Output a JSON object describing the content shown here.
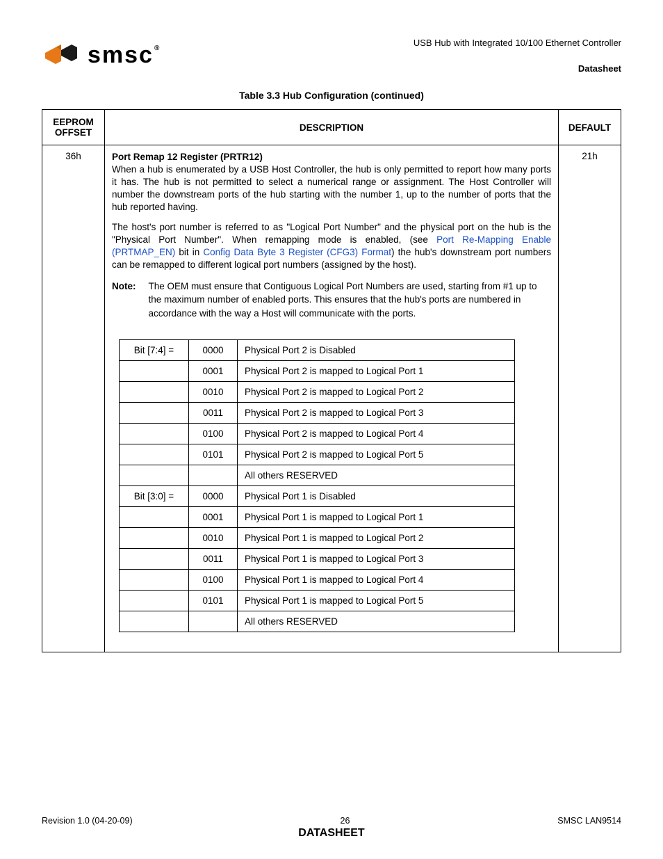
{
  "header": {
    "product_line": "USB Hub with Integrated 10/100 Ethernet Controller",
    "doc_type": "Datasheet",
    "logo_text": "smsc",
    "logo_reg": "®",
    "logo_colors": {
      "orange": "#e77817",
      "black": "#1a1a1a"
    }
  },
  "table_title": "Table 3.3 Hub Configuration (continued)",
  "columns": {
    "offset": "EEPROM OFFSET",
    "description": "DESCRIPTION",
    "default": "DEFAULT"
  },
  "row": {
    "offset": "36h",
    "default": "21h",
    "reg_name": "Port Remap 12 Register (PRTR12)",
    "para1": "When a hub is enumerated by a USB Host Controller, the hub is only permitted to report how many ports it has. The hub is not permitted to select a numerical range or assignment. The Host Controller will number the downstream ports of the hub starting with the number 1, up to the number of ports that the hub reported having.",
    "para2_pre": "The host's port number is referred to as \"Logical Port Number\" and the physical port on the hub is the \"Physical Port Number\". When remapping mode is enabled, (see ",
    "link1": "Port Re-Mapping Enable (PRTMAP_EN)",
    "para2_mid": " bit in ",
    "link2": "Config Data Byte 3 Register (CFG3) Format",
    "para2_post": ") the hub's downstream port numbers can be remapped to different logical port numbers (assigned by the host).",
    "note_label": "Note:",
    "note_text": "The OEM must ensure that Contiguous Logical Port Numbers are used, starting from #1 up to the maximum number of enabled ports. This ensures that the hub's ports are numbered in accordance with the way a Host will communicate with the ports.",
    "bits": [
      {
        "bit": "Bit [7:4] =",
        "code": "0000",
        "desc": "Physical Port 2 is Disabled"
      },
      {
        "bit": "",
        "code": "0001",
        "desc": "Physical Port 2 is mapped to Logical Port 1"
      },
      {
        "bit": "",
        "code": "0010",
        "desc": "Physical Port 2 is mapped to Logical Port 2"
      },
      {
        "bit": "",
        "code": "0011",
        "desc": "Physical Port 2 is mapped to Logical Port 3"
      },
      {
        "bit": "",
        "code": "0100",
        "desc": "Physical Port 2 is mapped to Logical Port 4"
      },
      {
        "bit": "",
        "code": "0101",
        "desc": "Physical Port 2 is mapped to Logical Port 5"
      },
      {
        "bit": "",
        "code": "",
        "desc": "All others RESERVED"
      },
      {
        "bit": "Bit [3:0] =",
        "code": "0000",
        "desc": "Physical Port 1 is Disabled"
      },
      {
        "bit": "",
        "code": "0001",
        "desc": "Physical Port 1 is mapped to Logical Port 1"
      },
      {
        "bit": "",
        "code": "0010",
        "desc": "Physical Port 1 is mapped to Logical Port 2"
      },
      {
        "bit": "",
        "code": "0011",
        "desc": "Physical Port 1 is mapped to Logical Port 3"
      },
      {
        "bit": "",
        "code": "0100",
        "desc": "Physical Port 1 is mapped to Logical Port 4"
      },
      {
        "bit": "",
        "code": "0101",
        "desc": "Physical Port 1 is mapped to Logical Port 5"
      },
      {
        "bit": "",
        "code": "",
        "desc": "All others RESERVED"
      }
    ]
  },
  "footer": {
    "revision": "Revision 1.0 (04-20-09)",
    "page": "26",
    "part": "SMSC LAN9514",
    "doc_type": "DATASHEET"
  }
}
